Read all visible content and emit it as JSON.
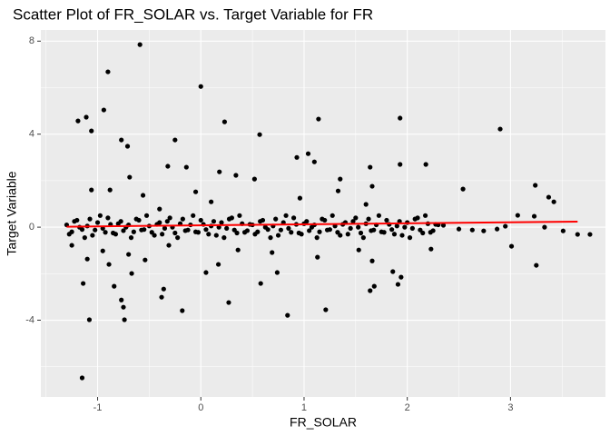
{
  "chart_data": {
    "type": "scatter",
    "title": "Scatter Plot of FR_SOLAR vs. Target Variable for FR",
    "x_label": "FR_SOLAR",
    "y_label": "Target Variable",
    "xlim": [
      -1.55,
      3.92
    ],
    "ylim": [
      -7.3,
      8.48
    ],
    "xticks": [
      -1,
      0,
      1,
      2,
      3
    ],
    "yticks": [
      -4,
      0,
      4,
      8
    ],
    "xminor": [
      -1.5,
      -0.5,
      0.5,
      1.5,
      2.5,
      3.5
    ],
    "yminor": [
      -6,
      -2,
      2,
      6
    ],
    "grid": true,
    "panel_color": "#ebebeb",
    "series": [
      {
        "color": "#000000",
        "x": [
          -0.59,
          -0.9,
          0.0,
          -0.94,
          -1.19,
          -1.11,
          -1.06,
          0.23,
          1.14,
          1.93,
          2.9,
          0.57,
          -0.77,
          -0.71,
          -0.25,
          1.04,
          0.93,
          1.1,
          -0.32,
          -0.14,
          0.18,
          0.34,
          1.64,
          2.18,
          1.93,
          -0.69,
          2.54,
          3.24,
          3.37,
          3.42,
          -1.06,
          -0.88,
          0.52,
          1.66,
          1.33,
          3.07,
          3.23,
          3.77,
          3.65,
          3.51,
          3.01,
          3.25,
          2.23,
          1.66,
          1.86,
          1.91,
          1.94,
          1.64,
          1.68,
          -1.14,
          -0.84,
          -0.77,
          -0.75,
          -0.74,
          -1.08,
          -0.36,
          -0.38,
          -0.18,
          0.27,
          0.84,
          1.21,
          -1.15,
          -0.67,
          -0.54,
          0.05,
          0.58,
          0.17,
          0.74,
          1.13,
          -1.25,
          -0.95,
          -0.89,
          -1.1,
          -0.7,
          -0.31,
          0.36,
          0.69,
          1.53,
          2.5,
          2.63,
          2.74,
          2.87,
          2.95,
          3.33,
          2.35,
          -0.05,
          0.1,
          0.96,
          1.35,
          -0.56,
          -0.4,
          1.6
        ],
        "y": [
          7.85,
          6.68,
          6.05,
          5.04,
          4.57,
          4.73,
          4.14,
          4.53,
          4.65,
          4.69,
          4.22,
          3.98,
          3.75,
          3.48,
          3.75,
          3.16,
          3.0,
          2.81,
          2.62,
          2.58,
          2.38,
          2.23,
          2.58,
          2.7,
          2.7,
          2.15,
          1.64,
          1.8,
          1.29,
          1.09,
          1.6,
          1.6,
          2.07,
          1.76,
          1.56,
          0.51,
          0.47,
          -0.31,
          -0.31,
          -0.16,
          -0.82,
          -1.64,
          -0.94,
          -1.45,
          -1.91,
          -2.46,
          -2.15,
          -2.73,
          -2.54,
          -2.42,
          -2.54,
          -3.13,
          -3.44,
          -3.98,
          -3.98,
          -2.66,
          -3.01,
          -3.59,
          -3.24,
          -3.79,
          -3.55,
          -6.48,
          -1.99,
          -1.41,
          -1.95,
          -2.42,
          -1.6,
          -1.95,
          -1.29,
          -0.78,
          -1.02,
          -1.6,
          -1.37,
          -1.17,
          -0.78,
          -0.98,
          -1.09,
          -0.98,
          -0.08,
          -0.12,
          -0.16,
          -0.08,
          0.04,
          0.0,
          0.08,
          1.52,
          1.09,
          1.25,
          2.07,
          1.37,
          0.78,
          0.98
        ]
      },
      {
        "color": "#000000",
        "x": [
          -1.3,
          -1.25,
          -1.2,
          -1.15,
          -1.1,
          -1.05,
          -1,
          -0.95,
          -0.9,
          -0.85,
          -0.8,
          -0.75,
          -0.7,
          -0.65,
          -0.6,
          -0.55,
          -0.5,
          -0.45,
          -0.4,
          -0.35,
          -0.3,
          -0.25,
          -0.2,
          -0.15,
          -0.1,
          -0.05,
          0,
          0.05,
          0.1,
          0.15,
          0.2,
          0.25,
          0.3,
          0.35,
          0.4,
          0.45,
          0.5,
          0.55,
          0.6,
          0.65,
          0.7,
          0.75,
          0.8,
          0.85,
          0.9,
          0.95,
          1,
          1.05,
          1.1,
          1.15,
          1.2,
          1.25,
          1.3,
          1.35,
          1.4,
          1.45,
          1.5,
          1.55,
          1.6,
          1.65,
          1.7,
          1.75,
          1.8,
          1.85,
          1.9,
          1.95,
          2,
          2.05,
          2.1,
          2.15,
          2.2,
          2.25,
          2.3
        ],
        "y": [
          0.1,
          -0.2,
          0.3,
          -0.1,
          0.05,
          -0.35,
          0.2,
          -0.05,
          0.4,
          -0.25,
          0.15,
          -0.15,
          0.1,
          -0.2,
          0.3,
          -0.1,
          0.05,
          -0.35,
          0.2,
          -0.05,
          0.4,
          -0.25,
          0.15,
          -0.15,
          0.1,
          -0.2,
          0.3,
          -0.1,
          0.05,
          -0.35,
          0.2,
          -0.05,
          0.4,
          -0.25,
          0.15,
          -0.15,
          0.1,
          -0.2,
          0.3,
          -0.1,
          0.05,
          -0.35,
          0.2,
          -0.05,
          0.4,
          -0.25,
          0.15,
          -0.15,
          0.1,
          -0.2,
          0.3,
          -0.1,
          0.05,
          -0.35,
          0.2,
          -0.05,
          0.4,
          -0.25,
          0.15,
          -0.15,
          0.1,
          -0.2,
          0.3,
          -0.1,
          0.05,
          -0.35,
          0.2,
          -0.05,
          0.4,
          -0.25,
          0.15,
          -0.15,
          0.1
        ]
      },
      {
        "color": "#000000",
        "x": [
          -1.275,
          -1.225,
          -1.175,
          -1.125,
          -1.075,
          -1.025,
          -0.975,
          -0.925,
          -0.875,
          -0.825,
          -0.775,
          -0.725,
          -0.675,
          -0.625,
          -0.575,
          -0.525,
          -0.475,
          -0.425,
          -0.375,
          -0.325,
          -0.275,
          -0.225,
          -0.175,
          -0.125,
          -0.075,
          -0.025,
          0.025,
          0.075,
          0.125,
          0.175,
          0.225,
          0.275,
          0.325,
          0.375,
          0.425,
          0.475,
          0.525,
          0.575,
          0.625,
          0.675,
          0.725,
          0.775,
          0.825,
          0.875,
          0.925,
          0.975,
          1.025,
          1.075,
          1.125,
          1.175,
          1.225,
          1.275,
          1.325,
          1.375,
          1.425,
          1.475,
          1.525,
          1.575,
          1.625,
          1.675,
          1.725,
          1.775,
          1.825,
          1.875,
          1.925,
          1.975,
          2.025,
          2.075,
          2.125,
          2.175,
          2.225,
          2.275
        ],
        "y": [
          -0.3,
          0.25,
          0.0,
          -0.45,
          0.35,
          -0.12,
          0.5,
          -0.22,
          0.12,
          -0.3,
          0.25,
          0.0,
          -0.45,
          0.35,
          -0.12,
          0.5,
          -0.22,
          0.12,
          -0.3,
          0.25,
          0.0,
          -0.45,
          0.35,
          -0.12,
          0.5,
          -0.22,
          0.12,
          -0.3,
          0.25,
          0.0,
          -0.45,
          0.35,
          -0.12,
          0.5,
          -0.22,
          0.12,
          -0.3,
          0.25,
          0.0,
          -0.45,
          0.35,
          -0.12,
          0.5,
          -0.22,
          0.12,
          -0.3,
          0.25,
          0.0,
          -0.45,
          0.35,
          -0.12,
          0.5,
          -0.22,
          0.12,
          -0.3,
          0.25,
          0.0,
          -0.45,
          0.35,
          -0.12,
          0.5,
          -0.22,
          0.12,
          -0.3,
          0.25,
          0.0,
          -0.45,
          0.35,
          -0.12,
          0.5,
          -0.22,
          0.12
        ]
      }
    ],
    "trend": {
      "color": "#ff0000",
      "x": [
        -1.3,
        3.65
      ],
      "y": [
        0.02,
        0.24
      ]
    }
  }
}
